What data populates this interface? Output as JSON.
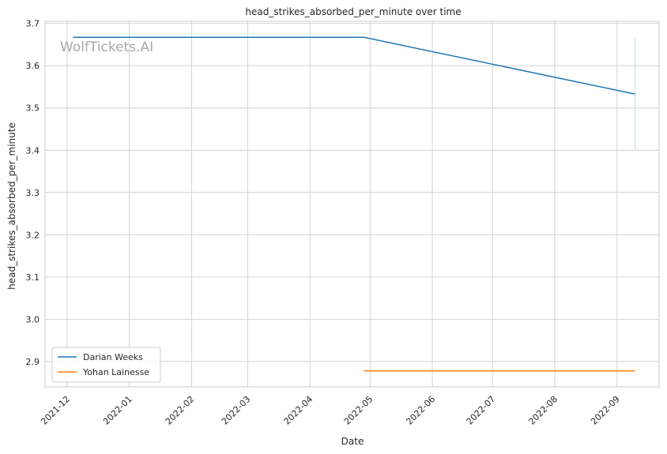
{
  "chart_data": {
    "type": "line",
    "title": "head_strikes_absorbed_per_minute over time",
    "xlabel": "Date",
    "ylabel": "head_strikes_absorbed_per_minute",
    "watermark": "WolfTickets.AI",
    "x_ticks": [
      "2021-12",
      "2022-01",
      "2022-02",
      "2022-03",
      "2022-04",
      "2022-05",
      "2022-06",
      "2022-07",
      "2022-08",
      "2022-09"
    ],
    "y_ticks": [
      "2.9",
      "3.0",
      "3.1",
      "3.2",
      "3.3",
      "3.4",
      "3.5",
      "3.6",
      "3.7"
    ],
    "xlim": [
      "2021-11-20",
      "2022-09-22"
    ],
    "ylim": [
      2.84,
      3.705
    ],
    "grid": true,
    "legend_position": "lower-left",
    "series": [
      {
        "name": "Darian Weeks",
        "color": "#1f77b4",
        "x": [
          "2021-12-04",
          "2022-04-28",
          "2022-09-10"
        ],
        "y": [
          3.667,
          3.667,
          3.533
        ]
      },
      {
        "name": "Yohan Lainesse",
        "color": "#ff7f0e",
        "x": [
          "2022-04-28",
          "2022-09-10"
        ],
        "y": [
          2.878,
          2.878
        ]
      }
    ],
    "annotations": [
      {
        "type": "vertical-line",
        "x": "2022-09-10",
        "y": [
          3.4,
          3.667
        ],
        "color": "#b9e6dc"
      }
    ]
  }
}
